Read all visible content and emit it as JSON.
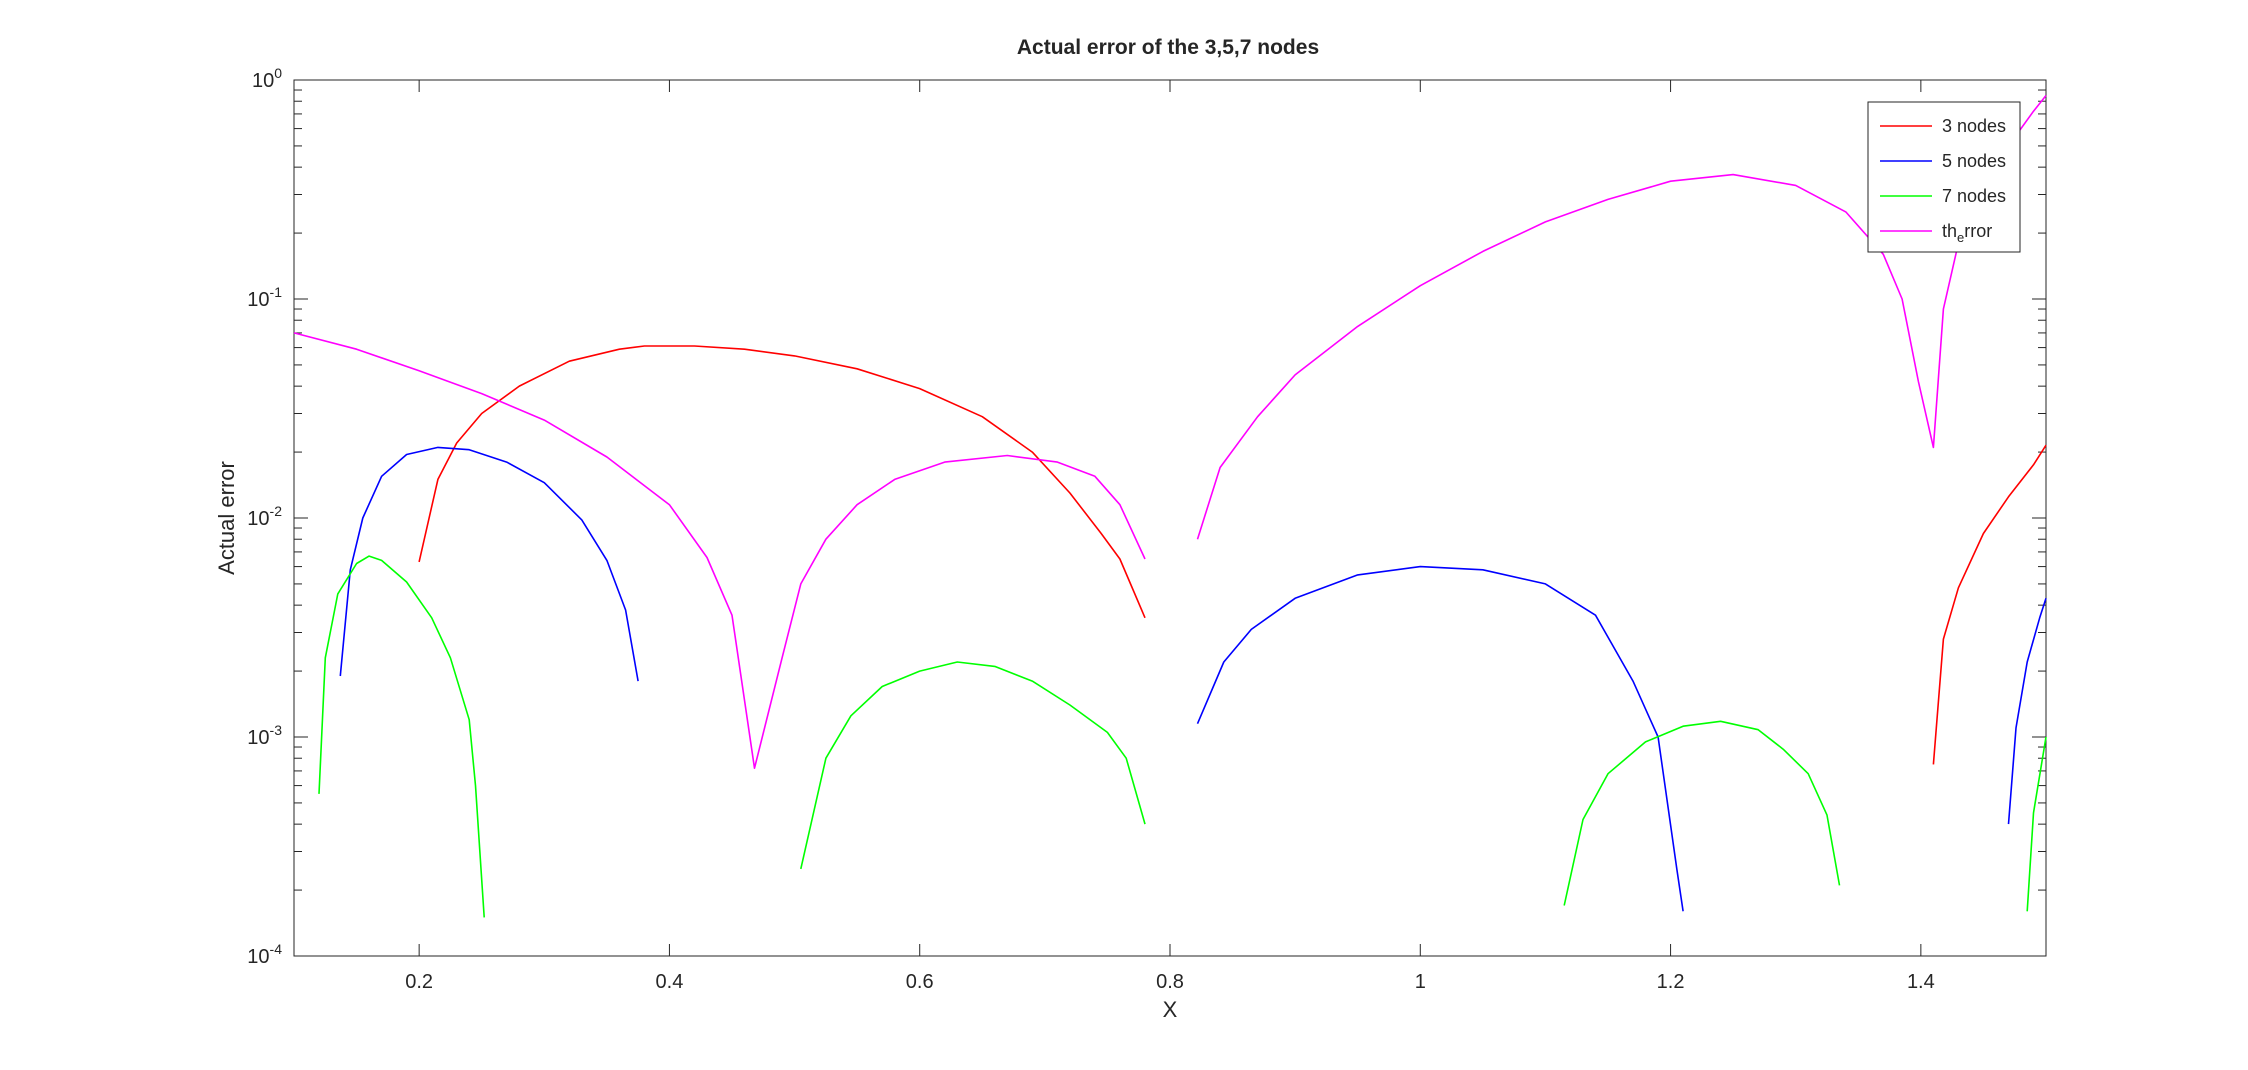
{
  "chart_data": {
    "type": "line",
    "title": "Actual error of the 3,5,7 nodes",
    "xlabel": "X",
    "ylabel": "Actual error",
    "xlim": [
      0.1,
      1.5
    ],
    "ylim": [
      0.0001,
      1
    ],
    "yscale": "log",
    "grid": false,
    "legend_position": "top-right",
    "x_ticks": [
      {
        "value": 0.2,
        "label": "0.2"
      },
      {
        "value": 0.4,
        "label": "0.4"
      },
      {
        "value": 0.6,
        "label": "0.6"
      },
      {
        "value": 0.8,
        "label": "0.8"
      },
      {
        "value": 1.0,
        "label": "1"
      },
      {
        "value": 1.2,
        "label": "1.2"
      },
      {
        "value": 1.4,
        "label": "1.4"
      }
    ],
    "y_ticks": [
      {
        "value": 0.0001,
        "base": "10",
        "exp": "-4"
      },
      {
        "value": 0.001,
        "base": "10",
        "exp": "-3"
      },
      {
        "value": 0.01,
        "base": "10",
        "exp": "-2"
      },
      {
        "value": 0.1,
        "base": "10",
        "exp": "-1"
      },
      {
        "value": 1,
        "base": "10",
        "exp": "0"
      }
    ],
    "series": [
      {
        "name": "3 nodes",
        "color": "#ff0000",
        "segments": [
          [
            [
              0.2,
              0.0063
            ],
            [
              0.215,
              0.015
            ],
            [
              0.23,
              0.022
            ],
            [
              0.25,
              0.03
            ],
            [
              0.28,
              0.04
            ],
            [
              0.32,
              0.052
            ],
            [
              0.36,
              0.059
            ],
            [
              0.38,
              0.061
            ],
            [
              0.42,
              0.061
            ],
            [
              0.46,
              0.059
            ],
            [
              0.5,
              0.055
            ],
            [
              0.55,
              0.048
            ],
            [
              0.6,
              0.039
            ],
            [
              0.65,
              0.029
            ],
            [
              0.69,
              0.02
            ],
            [
              0.72,
              0.013
            ],
            [
              0.745,
              0.0085
            ],
            [
              0.76,
              0.0065
            ],
            [
              0.78,
              0.0035
            ]
          ],
          [
            [
              1.41,
              0.00075
            ],
            [
              1.418,
              0.0028
            ],
            [
              1.43,
              0.0048
            ],
            [
              1.45,
              0.0085
            ],
            [
              1.47,
              0.0125
            ],
            [
              1.49,
              0.0175
            ],
            [
              1.5,
              0.0215
            ]
          ]
        ]
      },
      {
        "name": "5 nodes",
        "color": "#0000ff",
        "segments": [
          [
            [
              0.137,
              0.0019
            ],
            [
              0.145,
              0.0058
            ],
            [
              0.155,
              0.01
            ],
            [
              0.17,
              0.0155
            ],
            [
              0.19,
              0.0195
            ],
            [
              0.215,
              0.021
            ],
            [
              0.24,
              0.0205
            ],
            [
              0.27,
              0.018
            ],
            [
              0.3,
              0.0145
            ],
            [
              0.33,
              0.0098
            ],
            [
              0.35,
              0.0064
            ],
            [
              0.365,
              0.0038
            ],
            [
              0.375,
              0.0018
            ]
          ],
          [
            [
              0.822,
              0.00115
            ],
            [
              0.843,
              0.0022
            ],
            [
              0.865,
              0.0031
            ],
            [
              0.9,
              0.0043
            ],
            [
              0.95,
              0.0055
            ],
            [
              1.0,
              0.006
            ],
            [
              1.05,
              0.0058
            ],
            [
              1.1,
              0.005
            ],
            [
              1.14,
              0.0036
            ],
            [
              1.17,
              0.0018
            ],
            [
              1.19,
              0.001
            ],
            [
              1.205,
              0.00025
            ],
            [
              1.21,
              0.00016
            ]
          ],
          [
            [
              1.47,
              0.0004
            ],
            [
              1.476,
              0.0011
            ],
            [
              1.485,
              0.0022
            ],
            [
              1.495,
              0.0035
            ],
            [
              1.5,
              0.0043
            ]
          ]
        ]
      },
      {
        "name": "7 nodes",
        "color": "#00ff00",
        "segments": [
          [
            [
              0.12,
              0.00055
            ],
            [
              0.125,
              0.0023
            ],
            [
              0.135,
              0.0045
            ],
            [
              0.15,
              0.0062
            ],
            [
              0.16,
              0.0067
            ],
            [
              0.17,
              0.0064
            ],
            [
              0.19,
              0.0051
            ],
            [
              0.21,
              0.0035
            ],
            [
              0.225,
              0.0023
            ],
            [
              0.24,
              0.0012
            ],
            [
              0.245,
              0.0006
            ],
            [
              0.252,
              0.00015
            ]
          ],
          [
            [
              0.505,
              0.00025
            ],
            [
              0.525,
              0.0008
            ],
            [
              0.545,
              0.00125
            ],
            [
              0.57,
              0.0017
            ],
            [
              0.6,
              0.002
            ],
            [
              0.63,
              0.0022
            ],
            [
              0.66,
              0.0021
            ],
            [
              0.69,
              0.0018
            ],
            [
              0.72,
              0.0014
            ],
            [
              0.75,
              0.00105
            ],
            [
              0.765,
              0.0008
            ],
            [
              0.78,
              0.0004
            ]
          ],
          [
            [
              1.115,
              0.00017
            ],
            [
              1.13,
              0.00042
            ],
            [
              1.15,
              0.00068
            ],
            [
              1.18,
              0.00095
            ],
            [
              1.21,
              0.00112
            ],
            [
              1.24,
              0.00118
            ],
            [
              1.27,
              0.00108
            ],
            [
              1.29,
              0.00088
            ],
            [
              1.31,
              0.00068
            ],
            [
              1.325,
              0.00044
            ],
            [
              1.335,
              0.00021
            ]
          ],
          [
            [
              1.485,
              0.00016
            ],
            [
              1.49,
              0.00045
            ],
            [
              1.5,
              0.001
            ]
          ]
        ]
      },
      {
        "name": "th_error",
        "color": "#ff00ff",
        "segments": [
          [
            [
              0.1,
              0.07
            ],
            [
              0.15,
              0.059
            ],
            [
              0.2,
              0.047
            ],
            [
              0.25,
              0.037
            ],
            [
              0.3,
              0.028
            ],
            [
              0.35,
              0.019
            ],
            [
              0.4,
              0.0115
            ],
            [
              0.43,
              0.0066
            ],
            [
              0.45,
              0.0036
            ],
            [
              0.468,
              0.00072
            ],
            [
              0.49,
              0.0023
            ],
            [
              0.505,
              0.005
            ],
            [
              0.525,
              0.008
            ],
            [
              0.55,
              0.0115
            ],
            [
              0.58,
              0.015
            ],
            [
              0.62,
              0.018
            ],
            [
              0.67,
              0.0193
            ],
            [
              0.71,
              0.018
            ],
            [
              0.74,
              0.0155
            ],
            [
              0.76,
              0.0115
            ],
            [
              0.78,
              0.0065
            ]
          ],
          [
            [
              0.822,
              0.008
            ],
            [
              0.84,
              0.017
            ],
            [
              0.87,
              0.029
            ],
            [
              0.9,
              0.045
            ],
            [
              0.95,
              0.075
            ],
            [
              1.0,
              0.115
            ],
            [
              1.05,
              0.165
            ],
            [
              1.1,
              0.225
            ],
            [
              1.15,
              0.285
            ],
            [
              1.2,
              0.345
            ],
            [
              1.25,
              0.37
            ],
            [
              1.3,
              0.33
            ],
            [
              1.34,
              0.25
            ],
            [
              1.37,
              0.16
            ],
            [
              1.385,
              0.1
            ],
            [
              1.398,
              0.042
            ],
            [
              1.41,
              0.021
            ],
            [
              1.418,
              0.09
            ],
            [
              1.43,
              0.18
            ],
            [
              1.45,
              0.32
            ],
            [
              1.47,
              0.5
            ],
            [
              1.49,
              0.72
            ],
            [
              1.5,
              0.85
            ]
          ]
        ]
      }
    ],
    "legend": [
      {
        "base": "3 nodes",
        "sub": "",
        "rest": ""
      },
      {
        "base": "5 nodes",
        "sub": "",
        "rest": ""
      },
      {
        "base": "7 nodes",
        "sub": "",
        "rest": ""
      },
      {
        "base": "th",
        "sub": "e",
        "rest": "rror"
      }
    ]
  }
}
